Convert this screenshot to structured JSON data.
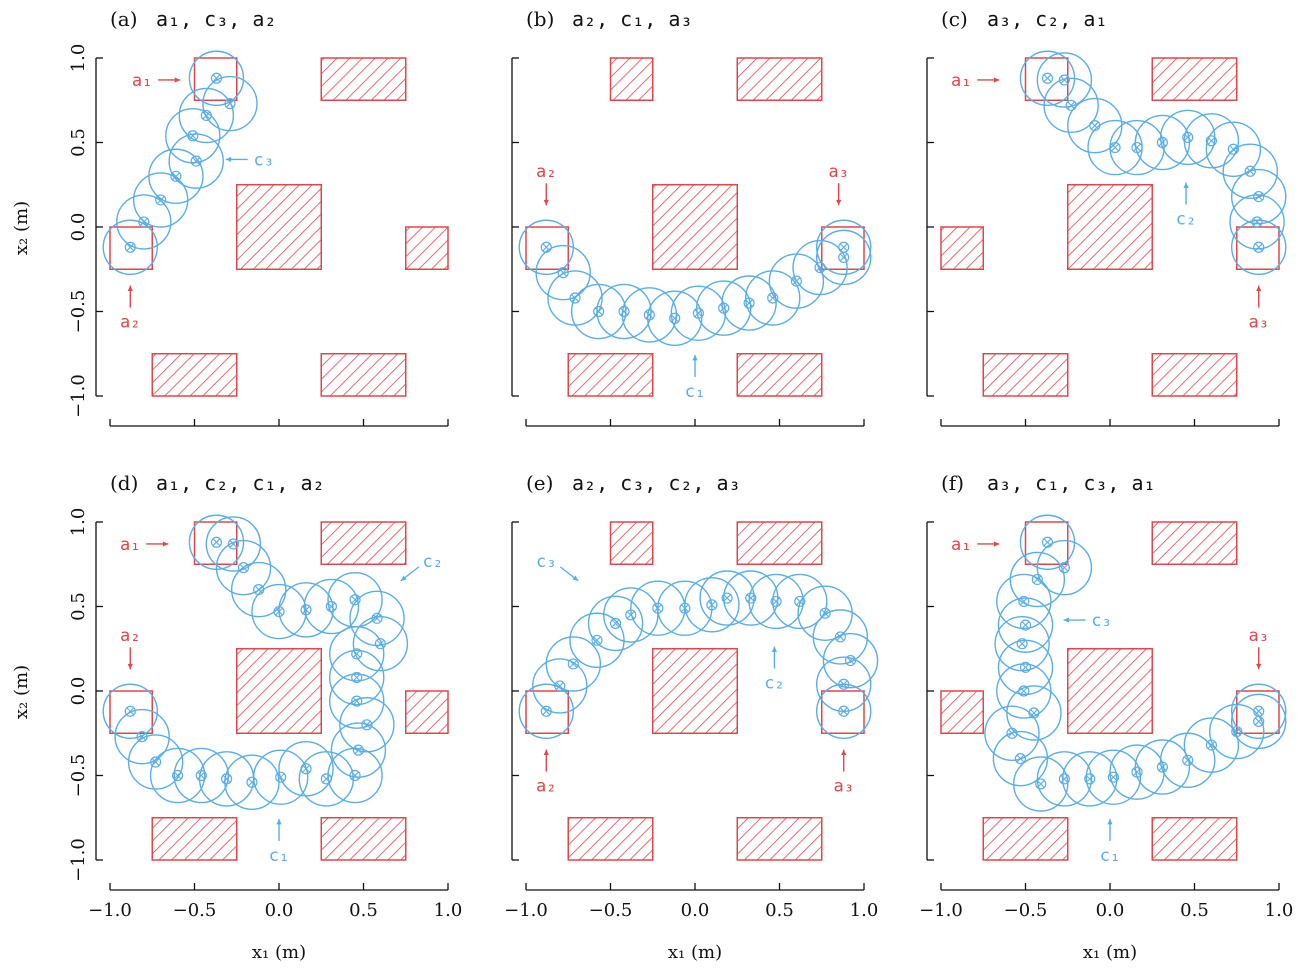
{
  "colors": {
    "obstacle": "#e0474c",
    "trajectory": "#5aaee8",
    "axis": "#111111"
  },
  "chart_data": {
    "type": "scatter",
    "xlabel": "x_1 (m)",
    "ylabel": "x_2 (m)",
    "xlim": [
      -1.0,
      1.0
    ],
    "ylim": [
      -1.0,
      1.0
    ],
    "xticks": [
      "−1.0",
      "−0.5",
      "0.0",
      "0.5",
      "1.0"
    ],
    "yticks": [
      "−1.0",
      "−0.5",
      "0.0",
      "0.5",
      "1.0"
    ],
    "grid": false,
    "obstacles": [
      [
        -0.75,
        -0.25,
        -1.0,
        -0.75
      ],
      [
        0.25,
        0.75,
        -1.0,
        -0.75
      ],
      [
        -0.25,
        0.25,
        -0.25,
        0.25
      ],
      [
        0.75,
        1.0,
        -0.25,
        0.0
      ],
      [
        -1.0,
        -0.75,
        -0.25,
        0.0
      ],
      [
        -0.5,
        -0.25,
        0.75,
        1.0
      ],
      [
        0.25,
        0.75,
        0.75,
        1.0
      ]
    ],
    "goal_regions": {
      "a1": [
        -0.5,
        -0.25,
        0.75,
        1.0
      ],
      "a2": [
        -1.0,
        -0.75,
        -0.25,
        0.0
      ],
      "a3": [
        0.75,
        1.0,
        -0.25,
        0.0
      ]
    },
    "circle_radius_m": 0.16,
    "panels": [
      {
        "label": "(a)",
        "sequence": [
          "a₁",
          "c₃",
          "a₂"
        ],
        "show_yticks": true,
        "show_xticks": false,
        "obstacles": [
          0,
          1,
          2,
          3,
          6
        ],
        "goals": [
          "a1",
          "a2"
        ],
        "points": [
          [
            -0.88,
            -0.12
          ],
          [
            -0.8,
            0.03
          ],
          [
            -0.7,
            0.16
          ],
          [
            -0.61,
            0.3
          ],
          [
            -0.49,
            0.39
          ],
          [
            -0.51,
            0.54
          ],
          [
            -0.43,
            0.66
          ],
          [
            -0.29,
            0.73
          ],
          [
            -0.37,
            0.88
          ]
        ],
        "annotations": [
          {
            "text": "a₁",
            "color": "red",
            "tx": -0.81,
            "ty": 0.87,
            "dir": "right"
          },
          {
            "text": "a₂",
            "color": "red",
            "tx": -0.88,
            "ty": -0.56,
            "dir": "up"
          },
          {
            "text": "c₃",
            "color": "blue",
            "tx": -0.09,
            "ty": 0.4,
            "dir": "left"
          }
        ]
      },
      {
        "label": "(b)",
        "sequence": [
          "a₂",
          "c₁",
          "a₃"
        ],
        "show_yticks": false,
        "show_xticks": false,
        "obstacles": [
          0,
          1,
          2,
          5,
          6
        ],
        "goals": [
          "a2",
          "a3"
        ],
        "points": [
          [
            -0.88,
            -0.12
          ],
          [
            -0.78,
            -0.27
          ],
          [
            -0.71,
            -0.42
          ],
          [
            -0.57,
            -0.5
          ],
          [
            -0.42,
            -0.5
          ],
          [
            -0.27,
            -0.52
          ],
          [
            -0.12,
            -0.54
          ],
          [
            0.02,
            -0.51
          ],
          [
            0.17,
            -0.48
          ],
          [
            0.32,
            -0.45
          ],
          [
            0.46,
            -0.42
          ],
          [
            0.6,
            -0.32
          ],
          [
            0.74,
            -0.24
          ],
          [
            0.88,
            -0.18
          ],
          [
            0.88,
            -0.12
          ]
        ],
        "annotations": [
          {
            "text": "a₂",
            "color": "red",
            "tx": -0.88,
            "ty": 0.33,
            "dir": "down"
          },
          {
            "text": "a₃",
            "color": "red",
            "tx": 0.85,
            "ty": 0.33,
            "dir": "down"
          },
          {
            "text": "c₁",
            "color": "blue",
            "tx": 0.0,
            "ty": -0.97,
            "dir": "up"
          }
        ]
      },
      {
        "label": "(c)",
        "sequence": [
          "a₃",
          "c₂",
          "a₁"
        ],
        "show_yticks": false,
        "show_xticks": false,
        "obstacles": [
          0,
          1,
          2,
          4,
          6
        ],
        "goals": [
          "a1",
          "a3"
        ],
        "points": [
          [
            0.88,
            -0.12
          ],
          [
            0.87,
            0.03
          ],
          [
            0.88,
            0.18
          ],
          [
            0.83,
            0.33
          ],
          [
            0.73,
            0.46
          ],
          [
            0.6,
            0.51
          ],
          [
            0.46,
            0.53
          ],
          [
            0.31,
            0.5
          ],
          [
            0.16,
            0.47
          ],
          [
            0.03,
            0.47
          ],
          [
            -0.09,
            0.6
          ],
          [
            -0.23,
            0.72
          ],
          [
            -0.27,
            0.87
          ],
          [
            -0.37,
            0.88
          ]
        ],
        "annotations": [
          {
            "text": "a₁",
            "color": "red",
            "tx": -0.88,
            "ty": 0.87,
            "dir": "right"
          },
          {
            "text": "a₃",
            "color": "red",
            "tx": 0.88,
            "ty": -0.56,
            "dir": "up"
          },
          {
            "text": "c₂",
            "color": "blue",
            "tx": 0.45,
            "ty": 0.05,
            "dir": "up"
          }
        ]
      },
      {
        "label": "(d)",
        "sequence": [
          "a₁",
          "c₂",
          "c₁",
          "a₂"
        ],
        "show_yticks": true,
        "show_xticks": true,
        "obstacles": [
          0,
          1,
          2,
          3,
          6
        ],
        "goals": [
          "a1",
          "a2"
        ],
        "points": [
          [
            -0.88,
            -0.12
          ],
          [
            -0.81,
            -0.27
          ],
          [
            -0.73,
            -0.42
          ],
          [
            -0.6,
            -0.5
          ],
          [
            -0.46,
            -0.5
          ],
          [
            -0.31,
            -0.52
          ],
          [
            -0.16,
            -0.54
          ],
          [
            0.01,
            -0.51
          ],
          [
            0.16,
            -0.46
          ],
          [
            0.28,
            -0.52
          ],
          [
            0.45,
            -0.5
          ],
          [
            0.47,
            -0.35
          ],
          [
            0.52,
            -0.2
          ],
          [
            0.46,
            -0.06
          ],
          [
            0.46,
            0.08
          ],
          [
            0.46,
            0.22
          ],
          [
            0.6,
            0.28
          ],
          [
            0.58,
            0.43
          ],
          [
            0.45,
            0.54
          ],
          [
            0.31,
            0.5
          ],
          [
            0.16,
            0.48
          ],
          [
            0.0,
            0.47
          ],
          [
            -0.12,
            0.6
          ],
          [
            -0.21,
            0.73
          ],
          [
            -0.27,
            0.87
          ],
          [
            -0.37,
            0.88
          ]
        ],
        "annotations": [
          {
            "text": "a₁",
            "color": "red",
            "tx": -0.88,
            "ty": 0.87,
            "dir": "right"
          },
          {
            "text": "a₂",
            "color": "red",
            "tx": -0.88,
            "ty": 0.33,
            "dir": "down"
          },
          {
            "text": "c₂",
            "color": "blue",
            "tx": 0.91,
            "ty": 0.77,
            "dir": "downleft"
          },
          {
            "text": "c₁",
            "color": "blue",
            "tx": 0.0,
            "ty": -0.97,
            "dir": "up"
          }
        ]
      },
      {
        "label": "(e)",
        "sequence": [
          "a₂",
          "c₃",
          "c₂",
          "a₃"
        ],
        "show_yticks": false,
        "show_xticks": true,
        "obstacles": [
          0,
          1,
          2,
          5,
          6
        ],
        "goals": [
          "a2",
          "a3"
        ],
        "points": [
          [
            -0.88,
            -0.12
          ],
          [
            -0.8,
            0.03
          ],
          [
            -0.72,
            0.16
          ],
          [
            -0.58,
            0.3
          ],
          [
            -0.47,
            0.4
          ],
          [
            -0.38,
            0.45
          ],
          [
            -0.22,
            0.49
          ],
          [
            -0.06,
            0.49
          ],
          [
            0.1,
            0.51
          ],
          [
            0.19,
            0.55
          ],
          [
            0.33,
            0.55
          ],
          [
            0.48,
            0.53
          ],
          [
            0.62,
            0.53
          ],
          [
            0.77,
            0.46
          ],
          [
            0.86,
            0.32
          ],
          [
            0.92,
            0.18
          ],
          [
            0.88,
            0.04
          ],
          [
            0.88,
            -0.12
          ]
        ],
        "annotations": [
          {
            "text": "a₂",
            "color": "red",
            "tx": -0.88,
            "ty": -0.56,
            "dir": "up"
          },
          {
            "text": "a₃",
            "color": "red",
            "tx": 0.88,
            "ty": -0.56,
            "dir": "up"
          },
          {
            "text": "c₃",
            "color": "blue",
            "tx": -0.88,
            "ty": 0.77,
            "dir": "downright"
          },
          {
            "text": "c₂",
            "color": "blue",
            "tx": 0.47,
            "ty": 0.05,
            "dir": "up"
          }
        ]
      },
      {
        "label": "(f)",
        "sequence": [
          "a₃",
          "c₁",
          "c₃",
          "a₁"
        ],
        "show_yticks": false,
        "show_xticks": true,
        "obstacles": [
          0,
          1,
          2,
          4,
          6
        ],
        "goals": [
          "a1",
          "a3"
        ],
        "points": [
          [
            0.88,
            -0.12
          ],
          [
            0.88,
            -0.18
          ],
          [
            0.75,
            -0.24
          ],
          [
            0.6,
            -0.32
          ],
          [
            0.46,
            -0.41
          ],
          [
            0.31,
            -0.45
          ],
          [
            0.16,
            -0.48
          ],
          [
            0.02,
            -0.51
          ],
          [
            -0.12,
            -0.52
          ],
          [
            -0.27,
            -0.52
          ],
          [
            -0.41,
            -0.55
          ],
          [
            -0.53,
            -0.4
          ],
          [
            -0.58,
            -0.25
          ],
          [
            -0.45,
            -0.13
          ],
          [
            -0.51,
            0.0
          ],
          [
            -0.5,
            0.14
          ],
          [
            -0.52,
            0.28
          ],
          [
            -0.5,
            0.39
          ],
          [
            -0.51,
            0.53
          ],
          [
            -0.43,
            0.66
          ],
          [
            -0.27,
            0.73
          ],
          [
            -0.37,
            0.88
          ]
        ],
        "annotations": [
          {
            "text": "a₁",
            "color": "red",
            "tx": -0.88,
            "ty": 0.87,
            "dir": "right"
          },
          {
            "text": "a₃",
            "color": "red",
            "tx": 0.88,
            "ty": 0.33,
            "dir": "down"
          },
          {
            "text": "c₃",
            "color": "blue",
            "tx": -0.05,
            "ty": 0.42,
            "dir": "left"
          },
          {
            "text": "c₁",
            "color": "blue",
            "tx": 0.0,
            "ty": -0.97,
            "dir": "up"
          }
        ]
      }
    ]
  }
}
